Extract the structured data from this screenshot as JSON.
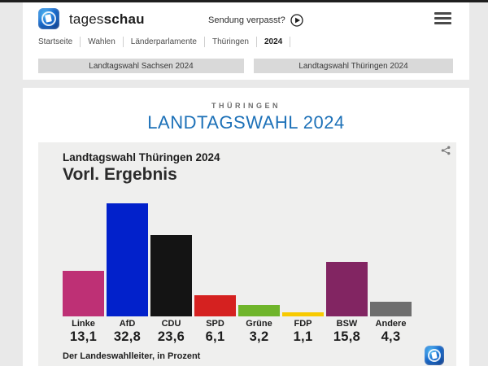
{
  "header": {
    "brand": {
      "name_regular": "tages",
      "name_bold": "schau"
    },
    "sendung_verpasst": "Sendung verpasst?",
    "breadcrumb": [
      "Startseite",
      "Wahlen",
      "Länderparlamente",
      "Thüringen",
      "2024"
    ],
    "tabs": [
      {
        "label": "Landtagswahl Sachsen 2024"
      },
      {
        "label": "Landtagswahl Thüringen 2024"
      }
    ],
    "icons": {
      "logo": "tagesschau-globe-logo",
      "play": "play-circle-icon",
      "menu": "hamburger-menu-icon"
    }
  },
  "page": {
    "kicker": "THÜRINGEN",
    "title": "LANDTAGSWAHL 2024",
    "title_color": "#1d71b8"
  },
  "chart_card": {
    "title": "Landtagswahl Thüringen 2024",
    "subtitle": "Vorl. Ergebnis",
    "source": "Der Landeswahlleiter, in Prozent",
    "share_icon": "share-icon",
    "background": "#efefee"
  },
  "chart_data": {
    "type": "bar",
    "title": "Landtagswahl Thüringen 2024 – Vorl. Ergebnis",
    "categories": [
      "Linke",
      "AfD",
      "CDU",
      "SPD",
      "Grüne",
      "FDP",
      "BSW",
      "Andere"
    ],
    "values": [
      13.1,
      32.8,
      23.6,
      6.1,
      3.2,
      1.1,
      15.8,
      4.3
    ],
    "value_labels": [
      "13,1",
      "32,8",
      "23,6",
      "6,1",
      "3,2",
      "1,1",
      "15,8",
      "4,3"
    ],
    "colors": [
      "#be3075",
      "#0221cb",
      "#141414",
      "#d52120",
      "#6fb52b",
      "#f8ca00",
      "#822562",
      "#6e6e6e"
    ],
    "unit": "Prozent",
    "ylabel": "",
    "xlabel": "",
    "ylim": [
      0,
      33
    ],
    "grid": false,
    "legend": "none"
  }
}
